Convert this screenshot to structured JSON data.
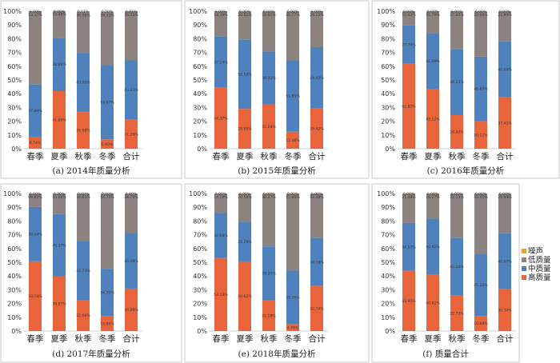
{
  "palette": {
    "gao": "#e8643b",
    "zhong": "#4f81bd",
    "di": "#8c8280",
    "noise": "#f0a030",
    "frame": "#c8c8c8"
  },
  "legend": {
    "items": [
      {
        "key": "noise",
        "label": "噪声"
      },
      {
        "key": "di",
        "label": "低质量"
      },
      {
        "key": "zhong",
        "label": "中质量"
      },
      {
        "key": "gao",
        "label": "高质量"
      }
    ]
  },
  "chart_data": [
    {
      "type": "bar",
      "stacked": true,
      "caption": "(a) 2014年质量分析",
      "categories": [
        "春季",
        "夏季",
        "秋季",
        "冬季",
        "合计"
      ],
      "yticks": [
        "0%",
        "10%",
        "20%",
        "30%",
        "40%",
        "50%",
        "60%",
        "70%",
        "80%",
        "90%",
        "100%"
      ],
      "ylim": [
        0,
        100
      ],
      "series": [
        {
          "key": "gao",
          "values": [
            8.74,
            41.86,
            26.68,
            6.8,
            21.28
          ],
          "labels": [
            "8.74%",
            "41.86%",
            "26.68%",
            "6.80%",
            "21.28%"
          ]
        },
        {
          "key": "zhong",
          "values": [
            37.89,
            38.86,
            43.05,
            53.67,
            43.21
          ],
          "labels": [
            "37.89%",
            "38.86%",
            "43.05%",
            "53.67%",
            "43.21%"
          ]
        },
        {
          "key": "di",
          "values": [
            53.37,
            19.48,
            30.06,
            39.33,
            35.55
          ],
          "labels": [
            "53.37%",
            "19.48%",
            "30.06%",
            "39.33%",
            "35.55%"
          ]
        },
        {
          "key": "noise",
          "values": [
            0,
            0,
            0,
            0,
            0
          ],
          "labels": [
            "0.00%",
            "0.00%",
            "0.01%",
            "0.00%",
            "0.01%"
          ]
        }
      ]
    },
    {
      "type": "bar",
      "stacked": true,
      "caption": "(b) 2015年质量分析",
      "categories": [
        "春季",
        "夏季",
        "秋季",
        "冬季",
        "合计"
      ],
      "yticks": [
        "0%",
        "10%",
        "20%",
        "30%",
        "40%",
        "50%",
        "60%",
        "70%",
        "80%",
        "90%",
        "100%"
      ],
      "ylim": [
        0,
        100
      ],
      "series": [
        {
          "key": "gao",
          "values": [
            44.37,
            28.95,
            32.28,
            12.38,
            29.42
          ],
          "labels": [
            "44.37%",
            "28.95%",
            "32.28%",
            "12.38%",
            "29.42%"
          ]
        },
        {
          "key": "zhong",
          "values": [
            37.24,
            50.54,
            38.31,
            51.85,
            44.43
          ],
          "labels": [
            "37.24%",
            "50.54%",
            "38.31%",
            "51.85%",
            "44.43%"
          ]
        },
        {
          "key": "di",
          "values": [
            18.39,
            20.51,
            29.41,
            35.77,
            26.15
          ],
          "labels": [
            "18.39%",
            "20.51%",
            "29.41%",
            "35.77%",
            "26.15%"
          ]
        },
        {
          "key": "noise",
          "values": [
            0,
            0,
            0,
            0,
            0
          ],
          "labels": [
            "0.00%",
            "0.00%",
            "0.00%",
            "0.00%",
            "0.00%"
          ]
        }
      ]
    },
    {
      "type": "bar",
      "stacked": true,
      "caption": "(c) 2016年质量分析",
      "categories": [
        "春季",
        "夏季",
        "秋季",
        "冬季",
        "合计"
      ],
      "yticks": [
        "0%",
        "10%",
        "20%",
        "30%",
        "40%",
        "50%",
        "60%",
        "70%",
        "80%",
        "90%",
        "100%"
      ],
      "ylim": [
        0,
        100
      ],
      "series": [
        {
          "key": "gao",
          "values": [
            61.82,
            43.12,
            24.42,
            20.11,
            37.41
          ],
          "labels": [
            "61.82%",
            "43.12%",
            "24.42%",
            "20.11%",
            "37.41%"
          ]
        },
        {
          "key": "zhong",
          "values": [
            27.76,
            41.09,
            48.13,
            46.83,
            40.69
          ],
          "labels": [
            "27.76%",
            "41.09%",
            "48.13%",
            "46.83%",
            "40.69%"
          ]
        },
        {
          "key": "di",
          "values": [
            10.42,
            15.79,
            27.45,
            33.06,
            21.9
          ],
          "labels": [
            "10.42%",
            "15.79%",
            "27.45%",
            "33.06%",
            "21.90%"
          ]
        },
        {
          "key": "noise",
          "values": [
            0,
            0,
            0,
            0,
            0
          ],
          "labels": [
            "0.00%",
            "0.00%",
            "0.00%",
            "0.00%",
            "0.00%"
          ]
        }
      ]
    },
    {
      "type": "bar",
      "stacked": true,
      "caption": "(d) 2017年质量分析",
      "categories": [
        "春季",
        "夏季",
        "秋季",
        "冬季",
        "合计"
      ],
      "yticks": [
        "0%",
        "10%",
        "20%",
        "30%",
        "40%",
        "50%",
        "60%",
        "70%",
        "80%",
        "90%",
        "100%"
      ],
      "ylim": [
        0,
        100
      ],
      "series": [
        {
          "key": "gao",
          "values": [
            50.74,
            39.57,
            22.66,
            10.86,
            30.86
          ],
          "labels": [
            "50.74%",
            "39.57%",
            "22.66%",
            "10.86%",
            "30.86%"
          ]
        },
        {
          "key": "zhong",
          "values": [
            39.44,
            45.37,
            42.73,
            34.39,
            40.38
          ],
          "labels": [
            "39.44%",
            "45.37%",
            "42.73%",
            "34.39%",
            "40.38%"
          ]
        },
        {
          "key": "di",
          "values": [
            9.82,
            15.06,
            34.61,
            54.75,
            28.76
          ],
          "labels": [
            "09.82%",
            "15.06%",
            "34.61%",
            "54.75%",
            "28.76%"
          ]
        },
        {
          "key": "noise",
          "values": [
            0,
            0,
            0,
            0,
            0
          ],
          "labels": [
            "0.00%",
            "0.00%",
            "0.00%",
            "0.00%",
            "0.00%"
          ]
        }
      ]
    },
    {
      "type": "bar",
      "stacked": true,
      "caption": "(e) 2018年质量分析",
      "categories": [
        "春季",
        "夏季",
        "秋季",
        "冬季",
        "合计"
      ],
      "yticks": [
        "0%",
        "10%",
        "20%",
        "30%",
        "40%",
        "50%",
        "60%",
        "70%",
        "80%",
        "90%",
        "100%"
      ],
      "ylim": [
        0,
        100
      ],
      "series": [
        {
          "key": "gao",
          "values": [
            53.13,
            50.62,
            22.18,
            4.78,
            32.74
          ],
          "labels": [
            "53.13%",
            "50.62%",
            "22.18%",
            "4.78%",
            "32.74%"
          ]
        },
        {
          "key": "zhong",
          "values": [
            32.68,
            28.79,
            39.35,
            39.36,
            34.78
          ],
          "labels": [
            "32.68%",
            "28.79%",
            "39.35%",
            "39.36%",
            "34.78%"
          ]
        },
        {
          "key": "di",
          "values": [
            14.19,
            20.59,
            38.47,
            55.86,
            32.48
          ],
          "labels": [
            "14.19%",
            "20.59%",
            "38.47%",
            "55.86%",
            "32.48%"
          ]
        },
        {
          "key": "noise",
          "values": [
            0,
            0,
            0,
            0,
            0
          ],
          "labels": [
            "0.00%",
            "0.00%",
            "0.00%",
            "0.00%",
            "0.00%"
          ]
        }
      ]
    },
    {
      "type": "bar",
      "stacked": true,
      "caption": "(f) 质量合计",
      "categories": [
        "春季",
        "夏季",
        "秋季",
        "冬季",
        "合计"
      ],
      "yticks": [
        "0%",
        "10%",
        "20%",
        "30%",
        "40%",
        "50%",
        "60%",
        "70%",
        "80%",
        "90%",
        "100%"
      ],
      "ylim": [
        0,
        100
      ],
      "series": [
        {
          "key": "gao",
          "values": [
            43.95,
            40.82,
            25.73,
            10.89,
            30.34
          ],
          "labels": [
            "43.95%",
            "40.82%",
            "25.73%",
            "10.89%",
            "30.34%"
          ]
        },
        {
          "key": "zhong",
          "values": [
            34.57,
            40.91,
            42.14,
            45.2,
            40.67
          ],
          "labels": [
            "34.57%",
            "40.91%",
            "42.14%",
            "45.20%",
            "40.67%"
          ]
        },
        {
          "key": "di",
          "values": [
            21.48,
            18.27,
            32.13,
            43.91,
            28.99
          ],
          "labels": [
            "21.48%",
            "18.27%",
            "32.13%",
            "43.91%",
            "28.99%"
          ]
        },
        {
          "key": "noise",
          "values": [
            0,
            0,
            0,
            0,
            0
          ],
          "labels": [
            "0.00%",
            "0.00%",
            "0.00%",
            "0.00%",
            "0.00%"
          ]
        }
      ]
    }
  ]
}
